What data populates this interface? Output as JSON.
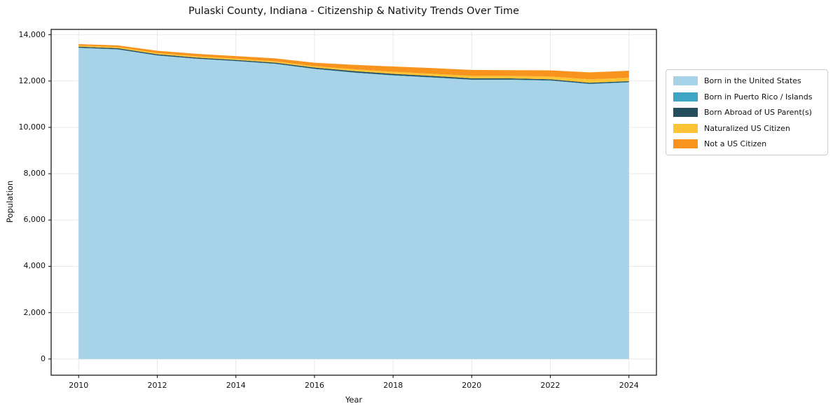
{
  "chart_data": {
    "type": "area",
    "stacked": true,
    "title": "Pulaski County, Indiana - Citizenship & Nativity Trends Over Time",
    "xlabel": "Year",
    "ylabel": "Population",
    "x": [
      2010,
      2011,
      2012,
      2013,
      2014,
      2015,
      2016,
      2017,
      2018,
      2019,
      2020,
      2021,
      2022,
      2023,
      2024
    ],
    "series": [
      {
        "name": "Born in the United States",
        "color": "#a7d3e8",
        "values": [
          13430,
          13360,
          13100,
          12960,
          12860,
          12740,
          12520,
          12360,
          12240,
          12150,
          12050,
          12050,
          12020,
          11870,
          11940
        ]
      },
      {
        "name": "Born in Puerto Rico / Islands",
        "color": "#3ea6c4",
        "values": [
          12,
          12,
          10,
          10,
          10,
          10,
          12,
          15,
          15,
          15,
          15,
          15,
          12,
          15,
          15
        ]
      },
      {
        "name": "Born Abroad of US Parent(s)",
        "color": "#254f5e",
        "values": [
          45,
          45,
          48,
          45,
          42,
          45,
          50,
          55,
          55,
          55,
          55,
          50,
          45,
          40,
          40
        ]
      },
      {
        "name": "Naturalized US Citizen",
        "color": "#fcc335",
        "values": [
          42,
          45,
          52,
          55,
          57,
          58,
          60,
          80,
          90,
          95,
          105,
          110,
          115,
          150,
          145
        ]
      },
      {
        "name": "Not a US Citizen",
        "color": "#f8941e",
        "values": [
          65,
          75,
          100,
          105,
          110,
          125,
          150,
          190,
          230,
          245,
          255,
          245,
          270,
          300,
          305
        ]
      }
    ],
    "xticks": [
      2010,
      2012,
      2014,
      2016,
      2018,
      2020,
      2022,
      2024
    ],
    "yticks": [
      0,
      2000,
      4000,
      6000,
      8000,
      10000,
      12000,
      14000
    ],
    "ytick_labels": [
      "0",
      "2,000",
      "4,000",
      "6,000",
      "8,000",
      "10,000",
      "12,000",
      "14,000"
    ],
    "xlim": [
      2009.3,
      2024.7
    ],
    "ylim": [
      -700,
      14230
    ],
    "grid": true,
    "grid_color": "#e8e8e8",
    "frame_color": "#1a1a1a",
    "legend_position": "right"
  }
}
